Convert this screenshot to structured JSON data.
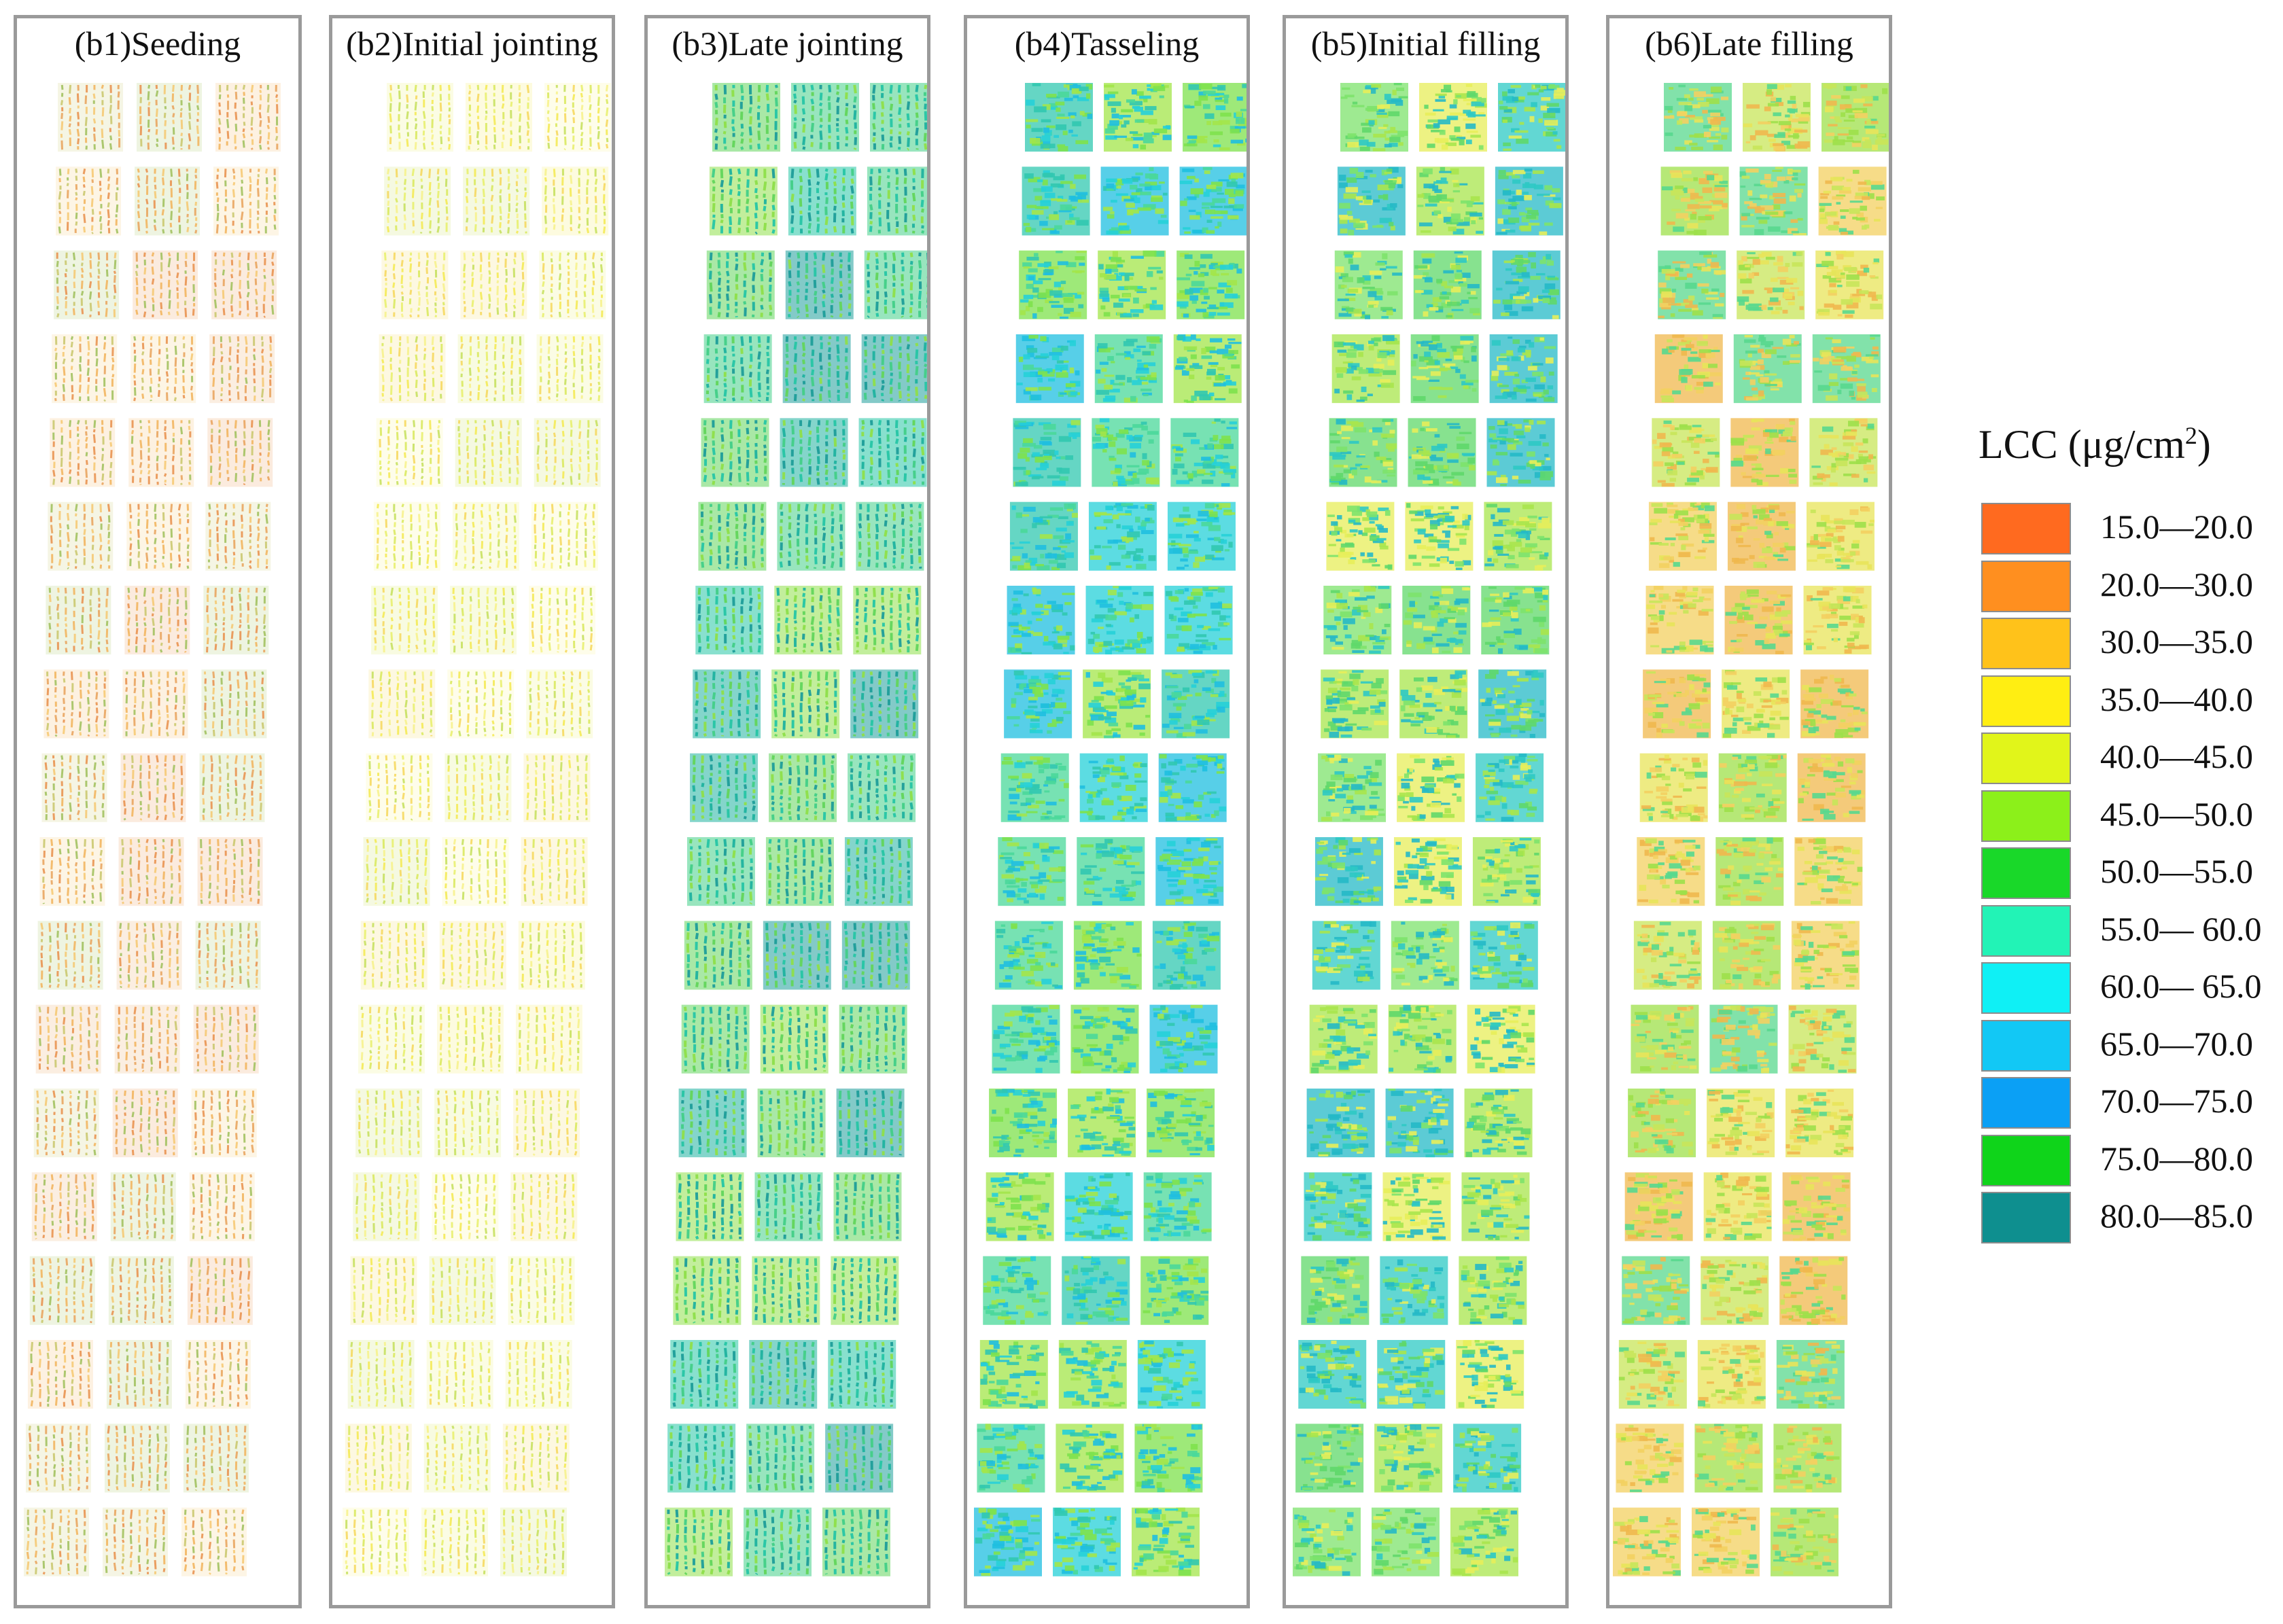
{
  "panels": [
    {
      "id": "b1",
      "title": "(b1)Seeding",
      "palette": [
        "#f2b35a",
        "#e9a25a",
        "#f6c870",
        "#c9c76a",
        "#9fc05a",
        "#e98f4a"
      ]
    },
    {
      "id": "b2",
      "title": "(b2)Initial jointing",
      "palette": [
        "#f4ea50",
        "#e8f06a",
        "#f7f28a",
        "#d9e95a",
        "#c5e05a",
        "#f6d85a"
      ]
    },
    {
      "id": "b3",
      "title": "(b3)Late jointing",
      "palette": [
        "#27c6a6",
        "#1fb3a0",
        "#63d65c",
        "#1e9e9a",
        "#43cf88",
        "#8fe04a"
      ]
    },
    {
      "id": "b4",
      "title": "(b4)Tasseling",
      "palette": [
        "#26d0d8",
        "#7ee24c",
        "#4ad89a",
        "#1fbfe0",
        "#a3e64a",
        "#31c8b0"
      ]
    },
    {
      "id": "b5",
      "title": "(b5)Initial filling",
      "palette": [
        "#5fd86a",
        "#2ec9c4",
        "#a8e64c",
        "#7de36c",
        "#25b9c7",
        "#e7ee5a"
      ]
    },
    {
      "id": "b6",
      "title": "(b6)Late  filling",
      "palette": [
        "#f3d060",
        "#9de04a",
        "#e8e45a",
        "#f0b84e",
        "#58d88e",
        "#c8e65a"
      ]
    }
  ],
  "legend": {
    "title": "LCC (μg/cm",
    "title_sup": "2",
    "title_close": ")",
    "items": [
      {
        "range": "15.0—20.0",
        "color": "#ff6a1f"
      },
      {
        "range": "20.0—30.0",
        "color": "#ff8f1f"
      },
      {
        "range": "30.0—35.0",
        "color": "#ffc21a"
      },
      {
        "range": "35.0—40.0",
        "color": "#ffee12"
      },
      {
        "range": "40.0—45.0",
        "color": "#e1f51a"
      },
      {
        "range": "45.0—50.0",
        "color": "#8cf01a"
      },
      {
        "range": "50.0—55.0",
        "color": "#19d829"
      },
      {
        "range": "55.0— 60.0",
        "color": "#22f3b6"
      },
      {
        "range": "60.0— 65.0",
        "color": "#0ff0f5"
      },
      {
        "range": "65.0—70.0",
        "color": "#12c8f5"
      },
      {
        "range": "70.0—75.0",
        "color": "#0ba0f5"
      },
      {
        "range": "75.0—80.0",
        "color": "#0fd41a"
      },
      {
        "range": "80.0—85.0",
        "color": "#0e8f8f"
      }
    ]
  }
}
